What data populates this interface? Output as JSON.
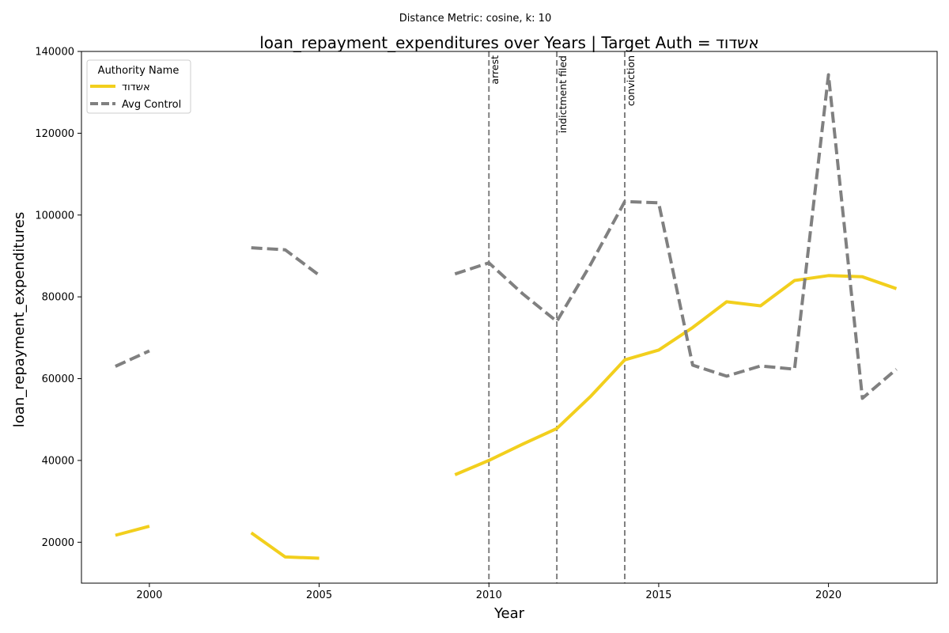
{
  "chart_data": {
    "type": "line",
    "suptitle": "Distance Metric: cosine, k: 10",
    "title": "loan_repayment_expenditures over Years | Target Auth = אשדוד",
    "xlabel": "Year",
    "ylabel": "loan_repayment_expenditures",
    "xlim": [
      1998,
      2023.2
    ],
    "ylim": [
      10000,
      140000
    ],
    "xticks": [
      2000,
      2005,
      2010,
      2015,
      2020
    ],
    "yticks": [
      20000,
      40000,
      60000,
      80000,
      100000,
      120000,
      140000
    ],
    "grid": false,
    "legend": {
      "title": "Authority Name",
      "position": "top-left"
    },
    "events": [
      {
        "x": 2010,
        "label": "arrest"
      },
      {
        "x": 2012,
        "label": "indictment filed"
      },
      {
        "x": 2014,
        "label": "conviction"
      }
    ],
    "series": [
      {
        "name": "אשדוד",
        "color": "#f2cf1d",
        "style": "solid",
        "segments": [
          [
            [
              1999,
              21700
            ],
            [
              2000,
              23900
            ]
          ],
          [
            [
              2003,
              22300
            ],
            [
              2004,
              16400
            ],
            [
              2005,
              16100
            ]
          ],
          [
            [
              2009,
              36500
            ],
            [
              2010,
              40000
            ],
            [
              2011,
              44000
            ],
            [
              2012,
              47800
            ],
            [
              2013,
              55700
            ],
            [
              2014,
              64600
            ],
            [
              2015,
              67000
            ],
            [
              2016,
              72500
            ],
            [
              2017,
              78800
            ],
            [
              2018,
              77800
            ],
            [
              2019,
              84000
            ],
            [
              2020,
              85200
            ],
            [
              2021,
              84900
            ],
            [
              2022,
              82000
            ]
          ]
        ]
      },
      {
        "name": "Avg Control",
        "color": "#808080",
        "style": "dashed",
        "segments": [
          [
            [
              1999,
              63000
            ],
            [
              2000,
              66800
            ]
          ],
          [
            [
              2003,
              92000
            ],
            [
              2004,
              91500
            ],
            [
              2005,
              85300
            ]
          ],
          [
            [
              2009,
              85600
            ],
            [
              2010,
              88300
            ],
            [
              2011,
              80700
            ],
            [
              2012,
              74000
            ],
            [
              2013,
              88000
            ],
            [
              2014,
              103300
            ],
            [
              2015,
              103000
            ],
            [
              2016,
              63300
            ],
            [
              2017,
              60600
            ],
            [
              2018,
              63100
            ],
            [
              2019,
              62300
            ],
            [
              2020,
              134300
            ],
            [
              2021,
              55200
            ],
            [
              2022,
              62300
            ]
          ]
        ]
      }
    ]
  }
}
